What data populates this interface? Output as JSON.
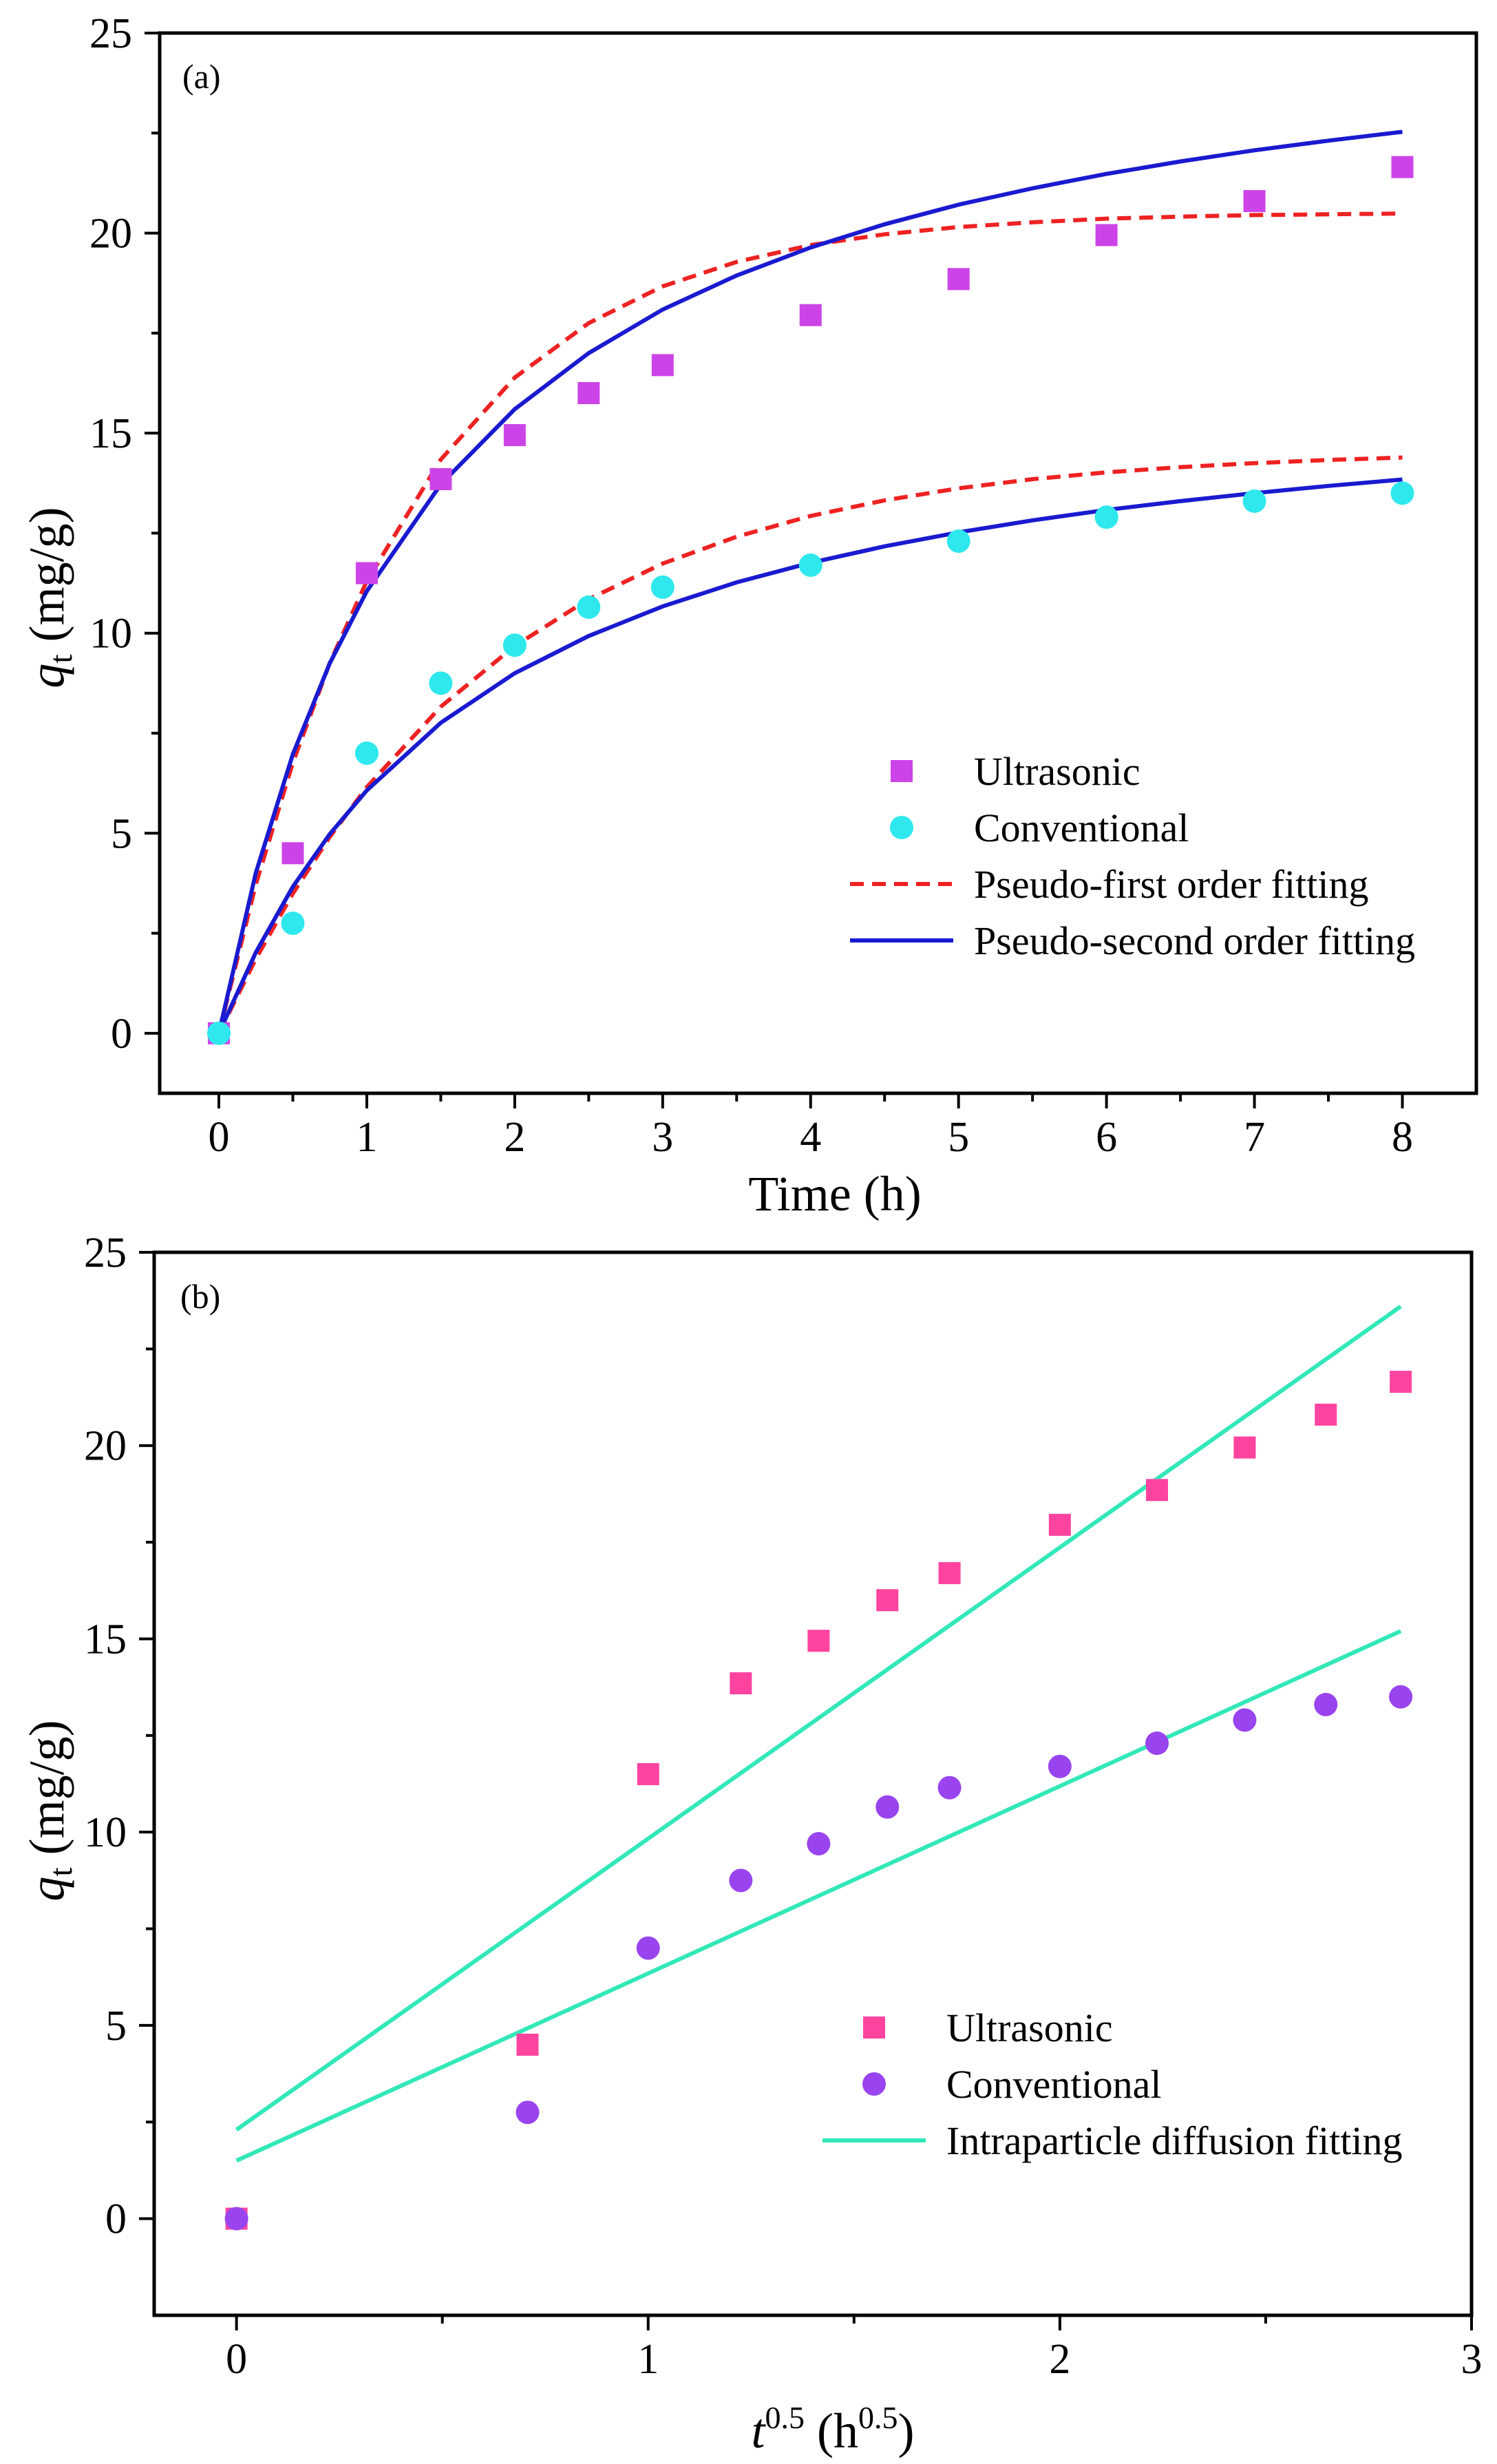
{
  "chart_data": [
    {
      "panel": "(a)",
      "type": "scatter",
      "xlabel": "Time (h)",
      "ylabel_symbol": "q",
      "ylabel_subscript": "t",
      "ylabel_unit": " (mg/g)",
      "xlim": [
        -0.4,
        8.5
      ],
      "ylim": [
        -1.5,
        25
      ],
      "xticks": [
        0,
        1,
        2,
        3,
        4,
        5,
        6,
        7,
        8
      ],
      "yticks": [
        0,
        5,
        10,
        15,
        20,
        25
      ],
      "legend_position": "bottom-right",
      "series": [
        {
          "name": "Ultrasonic",
          "kind": "points",
          "marker": "square",
          "color": "#cc44e8",
          "x": [
            0,
            0.5,
            1,
            1.5,
            2,
            2.5,
            3,
            4,
            5,
            6,
            7,
            8
          ],
          "y": [
            0,
            4.5,
            11.5,
            13.85,
            14.95,
            16.0,
            16.7,
            17.95,
            18.85,
            19.95,
            20.8,
            21.65
          ]
        },
        {
          "name": "Conventional",
          "kind": "points",
          "marker": "circle",
          "color": "#2ee8ee",
          "x": [
            0,
            0.5,
            1,
            1.5,
            2,
            2.5,
            3,
            4,
            5,
            6,
            7,
            8
          ],
          "y": [
            0,
            2.75,
            7.0,
            8.75,
            9.7,
            10.65,
            11.15,
            11.7,
            12.3,
            12.9,
            13.3,
            13.5
          ]
        },
        {
          "name": "Pseudo-first order fitting",
          "kind": "line",
          "dash": "dashed",
          "color": "#ee2222",
          "x": [
            0,
            0.25,
            0.5,
            0.75,
            1,
            1.5,
            2,
            2.5,
            3,
            3.5,
            4,
            4.5,
            5,
            5.5,
            6,
            6.5,
            7,
            7.5,
            8
          ],
          "y": [
            0,
            3.72,
            6.76,
            9.26,
            11.3,
            14.34,
            16.39,
            17.75,
            18.67,
            19.28,
            19.7,
            19.97,
            20.15,
            20.27,
            20.36,
            20.41,
            20.45,
            20.47,
            20.49
          ]
        },
        {
          "name": "Pseudo-first order fitting (conventional)",
          "kind": "line",
          "dash": "dashed",
          "color": "#ee2222",
          "x": [
            0,
            0.25,
            0.5,
            0.75,
            1,
            1.5,
            2,
            2.5,
            3,
            3.5,
            4,
            4.5,
            5,
            5.5,
            6,
            6.5,
            7,
            7.5,
            8
          ],
          "y": [
            0,
            1.86,
            3.49,
            4.91,
            6.15,
            8.16,
            9.68,
            10.85,
            11.74,
            12.41,
            12.93,
            13.32,
            13.62,
            13.85,
            14.02,
            14.15,
            14.25,
            14.33,
            14.39
          ]
        },
        {
          "name": "Pseudo-second order fitting",
          "kind": "line",
          "dash": "solid",
          "color": "#1a1ad0",
          "x": [
            0,
            0.25,
            0.5,
            0.75,
            1,
            1.5,
            2,
            2.5,
            3,
            3.5,
            4,
            4.5,
            5,
            5.5,
            6,
            6.5,
            7,
            7.5,
            8
          ],
          "y": [
            0,
            4.01,
            6.97,
            9.25,
            11.05,
            13.72,
            15.6,
            17.0,
            18.09,
            18.94,
            19.64,
            20.22,
            20.71,
            21.12,
            21.48,
            21.79,
            22.07,
            22.31,
            22.53
          ]
        },
        {
          "name": "Pseudo-second order fitting (conventional)",
          "kind": "line",
          "dash": "solid",
          "color": "#1a1ad0",
          "x": [
            0,
            0.25,
            0.5,
            0.75,
            1,
            1.5,
            2,
            2.5,
            3,
            3.5,
            4,
            4.5,
            5,
            5.5,
            6,
            6.5,
            7,
            7.5,
            8
          ],
          "y": [
            0,
            2.02,
            3.66,
            4.98,
            6.07,
            7.76,
            9.0,
            9.93,
            10.67,
            11.27,
            11.76,
            12.17,
            12.52,
            12.82,
            13.08,
            13.3,
            13.5,
            13.68,
            13.84
          ]
        }
      ],
      "legend": [
        {
          "label": "Ultrasonic",
          "symbol": "square",
          "color": "#cc44e8"
        },
        {
          "label": "Conventional",
          "symbol": "circle",
          "color": "#2ee8ee"
        },
        {
          "label": "Pseudo-first order fitting",
          "symbol": "dashed",
          "color": "#ee2222"
        },
        {
          "label": "Pseudo-second order fitting",
          "symbol": "solid",
          "color": "#1a1ad0"
        }
      ]
    },
    {
      "panel": "(b)",
      "type": "scatter",
      "xlabel_symbol": "t",
      "xlabel_sup": "0.5",
      "xlabel_unit": " (h",
      "xlabel_unit_sup": "0.5",
      "xlabel_close": ")",
      "ylabel_symbol": "q",
      "ylabel_subscript": "t",
      "ylabel_unit": " (mg/g)",
      "xlim": [
        -0.2,
        3.0
      ],
      "ylim": [
        -2.5,
        25
      ],
      "xticks": [
        0,
        1,
        2,
        3
      ],
      "yticks": [
        0,
        5,
        10,
        15,
        20,
        25
      ],
      "legend_position": "bottom-right",
      "series": [
        {
          "name": "Ultrasonic",
          "kind": "points",
          "marker": "square",
          "color": "#ff44a0",
          "x": [
            0,
            0.707,
            1,
            1.225,
            1.414,
            1.581,
            1.732,
            2,
            2.236,
            2.449,
            2.646,
            2.828
          ],
          "y": [
            0,
            4.5,
            11.5,
            13.85,
            14.95,
            16.0,
            16.7,
            17.95,
            18.85,
            19.95,
            20.8,
            21.65
          ]
        },
        {
          "name": "Conventional",
          "kind": "points",
          "marker": "circle",
          "color": "#9944ee",
          "x": [
            0,
            0.707,
            1,
            1.225,
            1.414,
            1.581,
            1.732,
            2,
            2.236,
            2.449,
            2.646,
            2.828
          ],
          "y": [
            0,
            2.75,
            7.0,
            8.75,
            9.7,
            10.65,
            11.15,
            11.7,
            12.3,
            12.9,
            13.3,
            13.5
          ]
        },
        {
          "name": "Intraparticle diffusion fitting",
          "kind": "line",
          "dash": "solid",
          "color": "#33e8b8",
          "x": [
            0,
            2.828
          ],
          "y": [
            2.3,
            23.6
          ]
        },
        {
          "name": "Intraparticle diffusion fitting (conventional)",
          "kind": "line",
          "dash": "solid",
          "color": "#33e8b8",
          "x": [
            0,
            2.828
          ],
          "y": [
            1.5,
            15.2
          ]
        }
      ],
      "legend": [
        {
          "label": "Ultrasonic",
          "symbol": "square",
          "color": "#ff44a0"
        },
        {
          "label": "Conventional",
          "symbol": "circle",
          "color": "#9944ee"
        },
        {
          "label": "Intraparticle diffusion fitting",
          "symbol": "solid",
          "color": "#33e8b8"
        }
      ]
    }
  ]
}
